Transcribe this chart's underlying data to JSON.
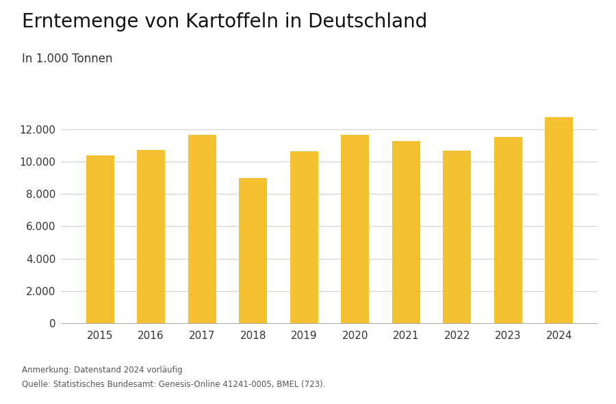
{
  "title": "Erntemenge von Kartoffeln in Deutschland",
  "subtitle": "In 1.000 Tonnen",
  "years": [
    2015,
    2016,
    2017,
    2018,
    2019,
    2020,
    2021,
    2022,
    2023,
    2024
  ],
  "values": [
    10380,
    10740,
    11660,
    9000,
    10620,
    11660,
    11270,
    10680,
    11530,
    12760
  ],
  "bar_color": "#F5C030",
  "background_color": "#ffffff",
  "ylim": [
    0,
    14000
  ],
  "yticks": [
    0,
    2000,
    4000,
    6000,
    8000,
    10000,
    12000
  ],
  "grid_color": "#d0d0d0",
  "annotation_line1": "Anmerkung: Datenstand 2024 vorläufig",
  "annotation_line2": "Quelle: Statistisches Bundesamt: Genesis-Online 41241-0005, BMEL (723).",
  "title_fontsize": 20,
  "subtitle_fontsize": 12,
  "tick_fontsize": 11,
  "annotation_fontsize": 8.5
}
